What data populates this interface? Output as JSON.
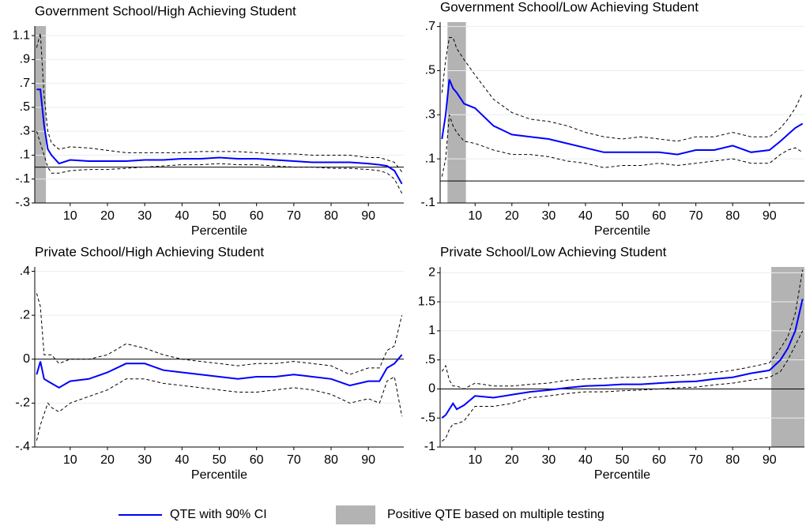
{
  "chart_data": [
    {
      "type": "line",
      "title": "Government School/High Achieving Student",
      "x_label": "Percentile",
      "x": [
        1,
        2,
        3,
        4,
        5,
        7,
        10,
        15,
        20,
        25,
        30,
        35,
        40,
        45,
        50,
        55,
        60,
        65,
        70,
        75,
        80,
        85,
        90,
        93,
        95,
        97,
        99
      ],
      "xlim": [
        0.5,
        99.5
      ],
      "xticks": [
        10,
        20,
        30,
        40,
        50,
        60,
        70,
        80,
        90
      ],
      "ylim": [
        -0.3,
        1.18
      ],
      "yticks": [
        {
          "value": -0.3,
          "label": "-.3"
        },
        {
          "value": -0.1,
          "label": "-.1"
        },
        {
          "value": 0.1,
          "label": ".1"
        },
        {
          "value": 0.3,
          "label": ".3"
        },
        {
          "value": 0.5,
          "label": ".5"
        },
        {
          "value": 0.7,
          "label": ".7"
        },
        {
          "value": 0.9,
          "label": ".9"
        },
        1.1
      ],
      "grid": true,
      "hline": 0,
      "shade": [
        [
          0.5,
          3.5
        ]
      ],
      "shade_color": "#b3b3b3",
      "series": [
        {
          "color": "#0000ff",
          "dash": false,
          "values": [
            0.65,
            0.65,
            0.35,
            0.15,
            0.1,
            0.03,
            0.06,
            0.05,
            0.05,
            0.05,
            0.06,
            0.06,
            0.07,
            0.07,
            0.08,
            0.07,
            0.07,
            0.06,
            0.05,
            0.04,
            0.04,
            0.04,
            0.03,
            0.02,
            0.01,
            -0.03,
            -0.14
          ]
        },
        {
          "color": "#000000",
          "dash": true,
          "values": [
            1.0,
            1.12,
            0.6,
            0.3,
            0.2,
            0.15,
            0.17,
            0.16,
            0.14,
            0.12,
            0.12,
            0.12,
            0.12,
            0.13,
            0.13,
            0.13,
            0.12,
            0.11,
            0.11,
            0.1,
            0.1,
            0.1,
            0.08,
            0.08,
            0.06,
            0.04,
            -0.04
          ]
        },
        {
          "color": "#000000",
          "dash": true,
          "values": [
            0.3,
            0.2,
            0.1,
            0.0,
            -0.05,
            -0.05,
            -0.03,
            -0.02,
            -0.02,
            -0.01,
            0.0,
            0.01,
            0.02,
            0.02,
            0.03,
            0.02,
            0.02,
            0.01,
            0.0,
            0.0,
            -0.01,
            -0.01,
            -0.02,
            -0.03,
            -0.05,
            -0.1,
            -0.22
          ]
        }
      ]
    },
    {
      "type": "line",
      "title": "Government School/Low Achieving Student",
      "x_label": "Percentile",
      "x": [
        1,
        2,
        3,
        4,
        5,
        7,
        10,
        15,
        20,
        25,
        30,
        35,
        40,
        45,
        50,
        55,
        60,
        65,
        70,
        75,
        80,
        85,
        90,
        93,
        95,
        97,
        99
      ],
      "xlim": [
        0.5,
        99.5
      ],
      "xticks": [
        10,
        20,
        30,
        40,
        50,
        60,
        70,
        80,
        90
      ],
      "ylim": [
        -0.1,
        0.72
      ],
      "yticks": [
        {
          "value": -0.1,
          "label": "-.1"
        },
        {
          "value": 0.1,
          "label": ".1"
        },
        {
          "value": 0.3,
          "label": ".3"
        },
        {
          "value": 0.5,
          "label": ".5"
        },
        {
          "value": 0.7,
          "label": ".7"
        }
      ],
      "grid": true,
      "hline": 0,
      "shade": [
        [
          2.5,
          7.5
        ]
      ],
      "shade_color": "#b3b3b3",
      "series": [
        {
          "color": "#0000ff",
          "dash": false,
          "values": [
            0.19,
            0.3,
            0.46,
            0.42,
            0.4,
            0.35,
            0.33,
            0.25,
            0.21,
            0.2,
            0.19,
            0.17,
            0.15,
            0.13,
            0.13,
            0.13,
            0.13,
            0.12,
            0.14,
            0.14,
            0.16,
            0.13,
            0.14,
            0.18,
            0.21,
            0.24,
            0.26
          ]
        },
        {
          "color": "#000000",
          "dash": true,
          "values": [
            0.4,
            0.55,
            0.65,
            0.65,
            0.6,
            0.55,
            0.48,
            0.37,
            0.31,
            0.28,
            0.27,
            0.25,
            0.22,
            0.2,
            0.19,
            0.2,
            0.19,
            0.18,
            0.2,
            0.2,
            0.22,
            0.2,
            0.2,
            0.24,
            0.28,
            0.33,
            0.4
          ]
        },
        {
          "color": "#000000",
          "dash": true,
          "values": [
            0.02,
            0.1,
            0.3,
            0.25,
            0.22,
            0.18,
            0.17,
            0.14,
            0.12,
            0.12,
            0.11,
            0.09,
            0.08,
            0.06,
            0.07,
            0.07,
            0.08,
            0.07,
            0.08,
            0.09,
            0.1,
            0.08,
            0.08,
            0.12,
            0.14,
            0.15,
            0.13
          ]
        }
      ]
    },
    {
      "type": "line",
      "title": "Private School/High Achieving Student",
      "x_label": "Percentile",
      "x": [
        1,
        2,
        3,
        4,
        5,
        7,
        10,
        15,
        20,
        25,
        30,
        35,
        40,
        45,
        50,
        55,
        60,
        65,
        70,
        75,
        80,
        85,
        90,
        93,
        95,
        97,
        99
      ],
      "xlim": [
        0.5,
        99.5
      ],
      "xticks": [
        10,
        20,
        30,
        40,
        50,
        60,
        70,
        80,
        90
      ],
      "ylim": [
        -0.4,
        0.42
      ],
      "yticks": [
        {
          "value": -0.4,
          "label": "-.4"
        },
        {
          "value": -0.2,
          "label": "-.2"
        },
        0,
        {
          "value": 0.2,
          "label": ".2"
        },
        {
          "value": 0.4,
          "label": ".4"
        }
      ],
      "grid": true,
      "hline": 0,
      "shade": [],
      "shade_color": "#b3b3b3",
      "series": [
        {
          "color": "#0000ff",
          "dash": false,
          "values": [
            -0.07,
            -0.01,
            -0.09,
            -0.1,
            -0.11,
            -0.13,
            -0.1,
            -0.09,
            -0.06,
            -0.02,
            -0.02,
            -0.05,
            -0.06,
            -0.07,
            -0.08,
            -0.09,
            -0.08,
            -0.08,
            -0.07,
            -0.08,
            -0.09,
            -0.12,
            -0.1,
            -0.1,
            -0.04,
            -0.02,
            0.02
          ]
        },
        {
          "color": "#000000",
          "dash": true,
          "values": [
            0.3,
            0.24,
            0.02,
            0.02,
            0.02,
            -0.02,
            0.0,
            0.0,
            0.02,
            0.07,
            0.05,
            0.02,
            0.0,
            -0.01,
            -0.02,
            -0.03,
            -0.02,
            -0.02,
            -0.01,
            -0.02,
            -0.03,
            -0.07,
            -0.04,
            -0.04,
            0.04,
            0.06,
            0.2
          ]
        },
        {
          "color": "#000000",
          "dash": true,
          "values": [
            -0.37,
            -0.3,
            -0.25,
            -0.2,
            -0.22,
            -0.24,
            -0.2,
            -0.17,
            -0.14,
            -0.09,
            -0.09,
            -0.11,
            -0.12,
            -0.13,
            -0.14,
            -0.15,
            -0.15,
            -0.14,
            -0.13,
            -0.14,
            -0.16,
            -0.2,
            -0.18,
            -0.2,
            -0.1,
            -0.08,
            -0.26
          ]
        }
      ]
    },
    {
      "type": "line",
      "title": "Private School/Low Achieving Student",
      "x_label": "Percentile",
      "x": [
        1,
        2,
        3,
        4,
        5,
        7,
        10,
        15,
        20,
        25,
        30,
        35,
        40,
        45,
        50,
        55,
        60,
        65,
        70,
        75,
        80,
        85,
        90,
        93,
        95,
        97,
        99
      ],
      "xlim": [
        0.5,
        99.5
      ],
      "xticks": [
        10,
        20,
        30,
        40,
        50,
        60,
        70,
        80,
        90
      ],
      "ylim": [
        -1,
        2.1
      ],
      "yticks": [
        -1,
        {
          "value": -0.5,
          "label": "-.5"
        },
        0,
        {
          "value": 0.5,
          "label": ".5"
        },
        1,
        1.5,
        2
      ],
      "grid": true,
      "hline": 0,
      "shade": [
        [
          90.5,
          99.5
        ]
      ],
      "shade_color": "#b3b3b3",
      "series": [
        {
          "color": "#0000ff",
          "dash": false,
          "values": [
            -0.5,
            -0.45,
            -0.35,
            -0.25,
            -0.35,
            -0.28,
            -0.12,
            -0.15,
            -0.1,
            -0.05,
            -0.02,
            0.02,
            0.05,
            0.06,
            0.08,
            0.08,
            0.1,
            0.12,
            0.13,
            0.17,
            0.2,
            0.27,
            0.32,
            0.5,
            0.7,
            1.0,
            1.55
          ]
        },
        {
          "color": "#000000",
          "dash": true,
          "values": [
            0.3,
            0.4,
            0.15,
            0.05,
            0.05,
            0.0,
            0.1,
            0.05,
            0.05,
            0.08,
            0.1,
            0.15,
            0.17,
            0.18,
            0.2,
            0.2,
            0.22,
            0.23,
            0.25,
            0.28,
            0.32,
            0.38,
            0.45,
            0.7,
            0.9,
            1.3,
            2.05
          ]
        },
        {
          "color": "#000000",
          "dash": true,
          "values": [
            -0.9,
            -0.85,
            -0.7,
            -0.6,
            -0.6,
            -0.55,
            -0.3,
            -0.3,
            -0.25,
            -0.15,
            -0.12,
            -0.08,
            -0.05,
            -0.05,
            -0.03,
            -0.02,
            0.0,
            0.02,
            0.03,
            0.07,
            0.1,
            0.15,
            0.2,
            0.3,
            0.5,
            0.75,
            1.0
          ]
        }
      ]
    }
  ],
  "legend": [
    {
      "label": "QTE with 90% CI",
      "color": "#0000ff",
      "kind": "line"
    },
    {
      "label": "Positive QTE based on multiple testing",
      "color": "#b3b3b3",
      "kind": "shade"
    }
  ]
}
